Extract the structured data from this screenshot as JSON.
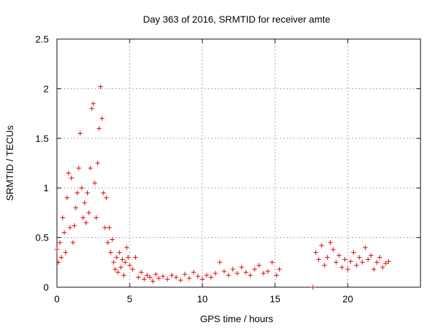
{
  "chart_data": {
    "type": "scatter",
    "title": "Day 363 of 2016, SRMTID for receiver amte",
    "xlabel": "GPS time / hours",
    "ylabel": "SRMTID / TECUs",
    "xlim": [
      0,
      25
    ],
    "ylim": [
      0,
      2.5
    ],
    "xticks": [
      0,
      5,
      10,
      15,
      20
    ],
    "xtick_labels": [
      "0",
      "5",
      "10",
      "15",
      "20"
    ],
    "yticks": [
      0,
      0.5,
      1,
      1.5,
      2,
      2.5
    ],
    "ytick_labels": [
      "0",
      "0.5",
      "1",
      "1.5",
      "2",
      "2.5"
    ],
    "grid": true,
    "marker": "+",
    "series": [
      {
        "name": "SRMTID",
        "color": "#e00000",
        "x": [
          0.0,
          0.1,
          0.2,
          0.3,
          0.4,
          0.5,
          0.6,
          0.7,
          0.8,
          0.9,
          1.0,
          1.1,
          1.2,
          1.3,
          1.4,
          1.5,
          1.6,
          1.7,
          1.8,
          1.9,
          2.0,
          2.1,
          2.2,
          2.3,
          2.4,
          2.5,
          2.6,
          2.7,
          2.8,
          2.9,
          3.0,
          3.1,
          3.2,
          3.3,
          3.4,
          3.5,
          3.6,
          3.7,
          3.8,
          3.9,
          4.0,
          4.1,
          4.2,
          4.3,
          4.4,
          4.5,
          4.6,
          4.7,
          4.8,
          4.9,
          5.0,
          5.2,
          5.4,
          5.6,
          5.8,
          6.0,
          6.2,
          6.4,
          6.6,
          6.8,
          7.0,
          7.3,
          7.6,
          7.9,
          8.2,
          8.5,
          8.8,
          9.1,
          9.4,
          9.7,
          10.0,
          10.3,
          10.6,
          10.9,
          11.2,
          11.5,
          11.8,
          12.1,
          12.4,
          12.7,
          13.0,
          13.3,
          13.6,
          13.9,
          14.2,
          14.5,
          14.8,
          15.1,
          15.3,
          17.6,
          17.8,
          18.0,
          18.2,
          18.4,
          18.6,
          18.8,
          19.0,
          19.2,
          19.4,
          19.6,
          19.8,
          20.0,
          20.2,
          20.4,
          20.6,
          20.8,
          21.0,
          21.2,
          21.4,
          21.6,
          21.8,
          22.0,
          22.2,
          22.4,
          22.6,
          22.8
        ],
        "y": [
          0.38,
          0.25,
          0.45,
          0.3,
          0.7,
          0.55,
          0.35,
          0.9,
          1.15,
          0.6,
          1.1,
          0.45,
          0.62,
          0.8,
          0.95,
          1.2,
          1.55,
          1.0,
          0.7,
          0.85,
          0.65,
          0.95,
          0.75,
          1.2,
          1.8,
          1.85,
          1.05,
          0.7,
          1.25,
          1.6,
          2.02,
          1.7,
          0.95,
          0.6,
          0.9,
          0.45,
          0.6,
          0.35,
          0.48,
          0.25,
          0.18,
          0.3,
          0.15,
          0.35,
          0.2,
          0.28,
          0.12,
          0.25,
          0.4,
          0.3,
          0.22,
          0.18,
          0.3,
          0.1,
          0.15,
          0.08,
          0.12,
          0.1,
          0.06,
          0.13,
          0.09,
          0.11,
          0.08,
          0.12,
          0.1,
          0.07,
          0.13,
          0.09,
          0.15,
          0.11,
          0.08,
          0.12,
          0.1,
          0.14,
          0.25,
          0.16,
          0.12,
          0.18,
          0.14,
          0.2,
          0.15,
          0.12,
          0.18,
          0.22,
          0.14,
          0.16,
          0.25,
          0.12,
          0.18,
          0.0,
          0.35,
          0.28,
          0.42,
          0.22,
          0.3,
          0.45,
          0.38,
          0.25,
          0.32,
          0.2,
          0.28,
          0.18,
          0.26,
          0.35,
          0.22,
          0.3,
          0.25,
          0.4,
          0.28,
          0.32,
          0.18,
          0.25,
          0.3,
          0.2,
          0.24,
          0.26
        ]
      }
    ]
  }
}
